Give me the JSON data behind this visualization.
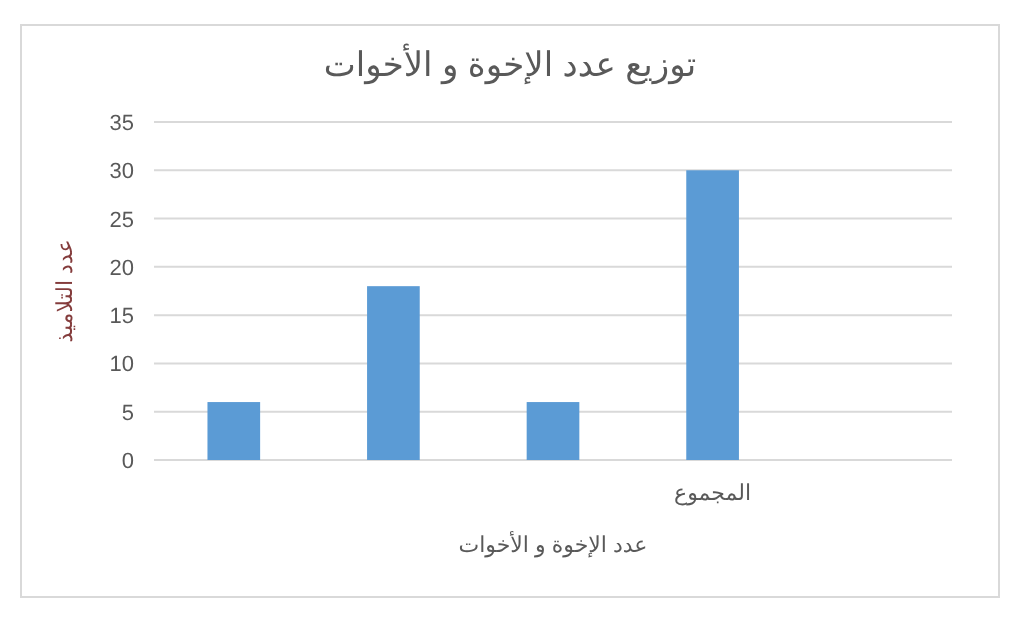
{
  "chart_data": {
    "type": "bar",
    "title": "توزيع عدد الإخوة و الأخوات",
    "xlabel": "عدد الإخوة و الأخوات",
    "ylabel": "عدد التلاميذ",
    "categories": [
      null,
      null,
      null,
      "المجموع",
      null
    ],
    "values": [
      6,
      18,
      6,
      30,
      null
    ],
    "color": "#5b9bd5",
    "ylim": [
      0,
      35
    ],
    "yticks": [
      0,
      5,
      10,
      15,
      20,
      25,
      30,
      35
    ],
    "grid": "y"
  }
}
